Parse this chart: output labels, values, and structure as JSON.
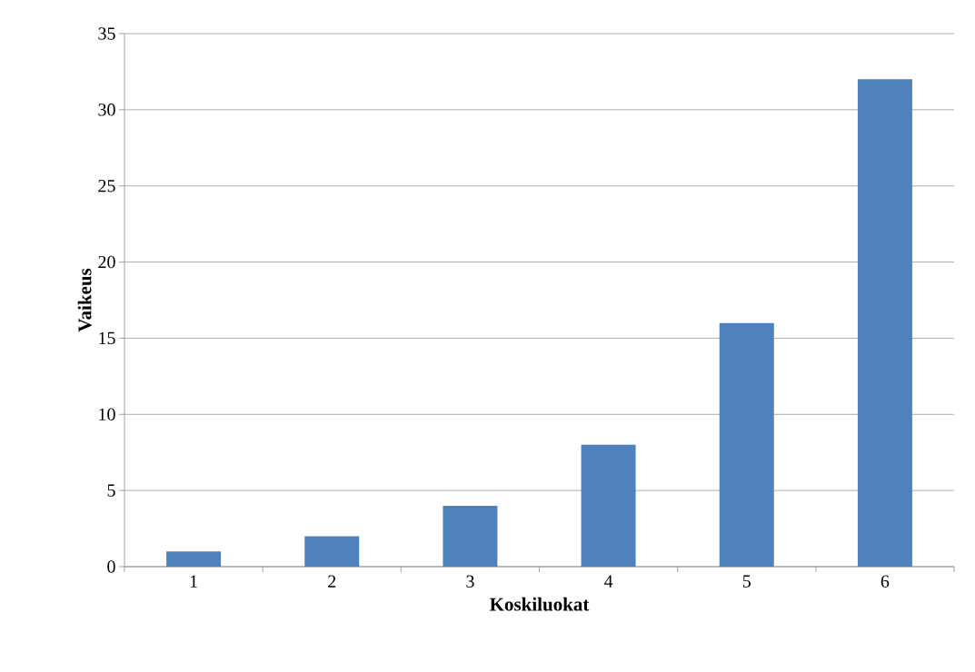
{
  "chart_data": {
    "type": "bar",
    "xlabel": "Koskiluokat",
    "ylabel": "Vaikeus",
    "categories": [
      "1",
      "2",
      "3",
      "4",
      "5",
      "6"
    ],
    "values": [
      1,
      2,
      4,
      8,
      16,
      32
    ],
    "color": "#4f81bd",
    "ylim": [
      0,
      35
    ],
    "yticks": [
      0,
      5,
      10,
      15,
      20,
      25,
      30,
      35
    ],
    "grid": "y"
  }
}
